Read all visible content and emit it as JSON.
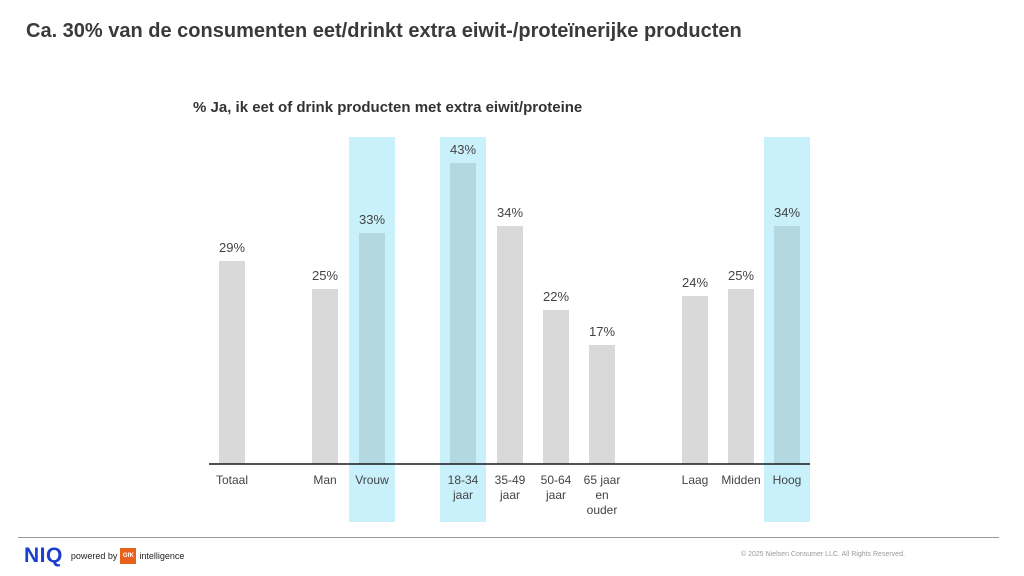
{
  "page": {
    "title": "Ca. 30% van de consumenten eet/drinkt extra eiwit-/proteïnerijke producten",
    "copyright": "© 2025 Nielsen Consumer LLC. All Rights Reserved.",
    "logo": {
      "brand": "NIQ",
      "powered_by": "powered by",
      "gfk": "GfK",
      "intelligence": "intelligence"
    }
  },
  "colors": {
    "bar": "#d9d9d9",
    "highlight_band": "#c8f1fb",
    "highlight_bar": "#b3d8e0",
    "axis": "#1a1a1a",
    "brand": "#1a3fd1",
    "gfk": "#e8601c"
  },
  "chart_data": {
    "type": "bar",
    "title": "% Ja, ik eet of drink producten met extra eiwit/proteine",
    "ylim": [
      0,
      45
    ],
    "categories": [
      [
        "Totaal"
      ],
      [
        "Man"
      ],
      [
        "Vrouw"
      ],
      [
        "18-34",
        "jaar"
      ],
      [
        "35-49",
        "jaar"
      ],
      [
        "50-64",
        "jaar"
      ],
      [
        "65 jaar",
        "en",
        "ouder"
      ],
      [
        "Laag"
      ],
      [
        "Midden"
      ],
      [
        "Hoog"
      ]
    ],
    "values": [
      29,
      25,
      33,
      43,
      34,
      22,
      17,
      24,
      25,
      34
    ],
    "value_labels": [
      "29%",
      "25%",
      "33%",
      "43%",
      "34%",
      "22%",
      "17%",
      "24%",
      "25%",
      "34%"
    ],
    "highlighted": [
      "Vrouw",
      "18-34",
      "Hoog"
    ],
    "grid": false
  }
}
